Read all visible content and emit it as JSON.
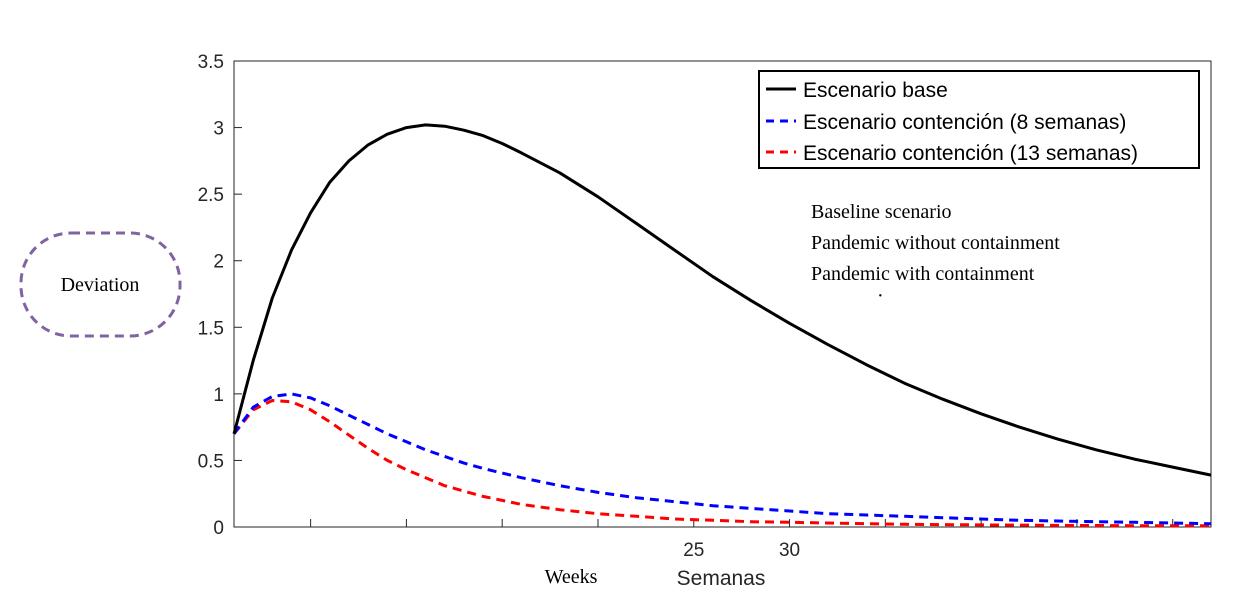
{
  "chart_data": {
    "type": "line",
    "title": "",
    "xlabel": "Semanas",
    "ylabel": "",
    "ylim": [
      0,
      3.5
    ],
    "yticks": [
      "0",
      "0.5",
      "1",
      "1.5",
      "2",
      "2.5",
      "3",
      "3.5"
    ],
    "xticks": [
      {
        "label": "25",
        "value": 25
      },
      {
        "label": "30",
        "value": 30
      }
    ],
    "xlim": [
      1,
      52
    ],
    "grid": false,
    "legend_position": "top-right",
    "series": [
      {
        "name": "Escenario base",
        "color": "#000000",
        "dash": "solid",
        "x": [
          1,
          2,
          3,
          4,
          5,
          6,
          7,
          8,
          9,
          10,
          11,
          12,
          13,
          14,
          15,
          16,
          18,
          20,
          22,
          24,
          26,
          28,
          30,
          32,
          34,
          36,
          38,
          40,
          42,
          44,
          46,
          48,
          50,
          52
        ],
        "values": [
          0.7,
          1.25,
          1.72,
          2.08,
          2.36,
          2.59,
          2.75,
          2.87,
          2.95,
          3.0,
          3.02,
          3.01,
          2.98,
          2.94,
          2.88,
          2.81,
          2.66,
          2.48,
          2.28,
          2.08,
          1.88,
          1.7,
          1.53,
          1.37,
          1.22,
          1.08,
          0.96,
          0.85,
          0.75,
          0.66,
          0.58,
          0.51,
          0.45,
          0.39
        ]
      },
      {
        "name": "Escenario contención (8 semanas)",
        "color": "#0000ff",
        "dash": "dashed",
        "x": [
          1,
          2,
          3,
          4,
          5,
          6,
          7,
          8,
          9,
          10,
          11,
          12,
          13,
          14,
          16,
          18,
          20,
          22,
          24,
          26,
          28,
          30,
          32,
          34,
          36,
          38,
          40,
          42,
          44,
          46,
          48,
          50,
          52
        ],
        "values": [
          0.7,
          0.9,
          0.98,
          1.0,
          0.97,
          0.91,
          0.84,
          0.77,
          0.7,
          0.64,
          0.58,
          0.53,
          0.48,
          0.44,
          0.37,
          0.31,
          0.26,
          0.22,
          0.19,
          0.16,
          0.14,
          0.12,
          0.1,
          0.09,
          0.08,
          0.07,
          0.06,
          0.05,
          0.045,
          0.04,
          0.035,
          0.03,
          0.025
        ]
      },
      {
        "name": "Escenario contención (13 semanas)",
        "color": "#ff0000",
        "dash": "dashed",
        "x": [
          1,
          2,
          3,
          4,
          5,
          6,
          7,
          8,
          9,
          10,
          11,
          12,
          13,
          14,
          16,
          18,
          20,
          22,
          24,
          26,
          28,
          30,
          32,
          34,
          36,
          38,
          40,
          42,
          44,
          46,
          48,
          50,
          52
        ],
        "values": [
          0.7,
          0.88,
          0.95,
          0.94,
          0.88,
          0.79,
          0.69,
          0.59,
          0.5,
          0.43,
          0.37,
          0.31,
          0.27,
          0.23,
          0.17,
          0.13,
          0.1,
          0.08,
          0.06,
          0.05,
          0.04,
          0.035,
          0.03,
          0.025,
          0.02,
          0.018,
          0.016,
          0.014,
          0.012,
          0.011,
          0.01,
          0.01,
          0.01
        ]
      }
    ]
  },
  "overlay": {
    "deviation_label": "Deviation",
    "weeks_label": "Weeks",
    "english_legend": [
      "Baseline scenario",
      "Pandemic without containment",
      "Pandemic with containment"
    ],
    "dot": "·"
  }
}
